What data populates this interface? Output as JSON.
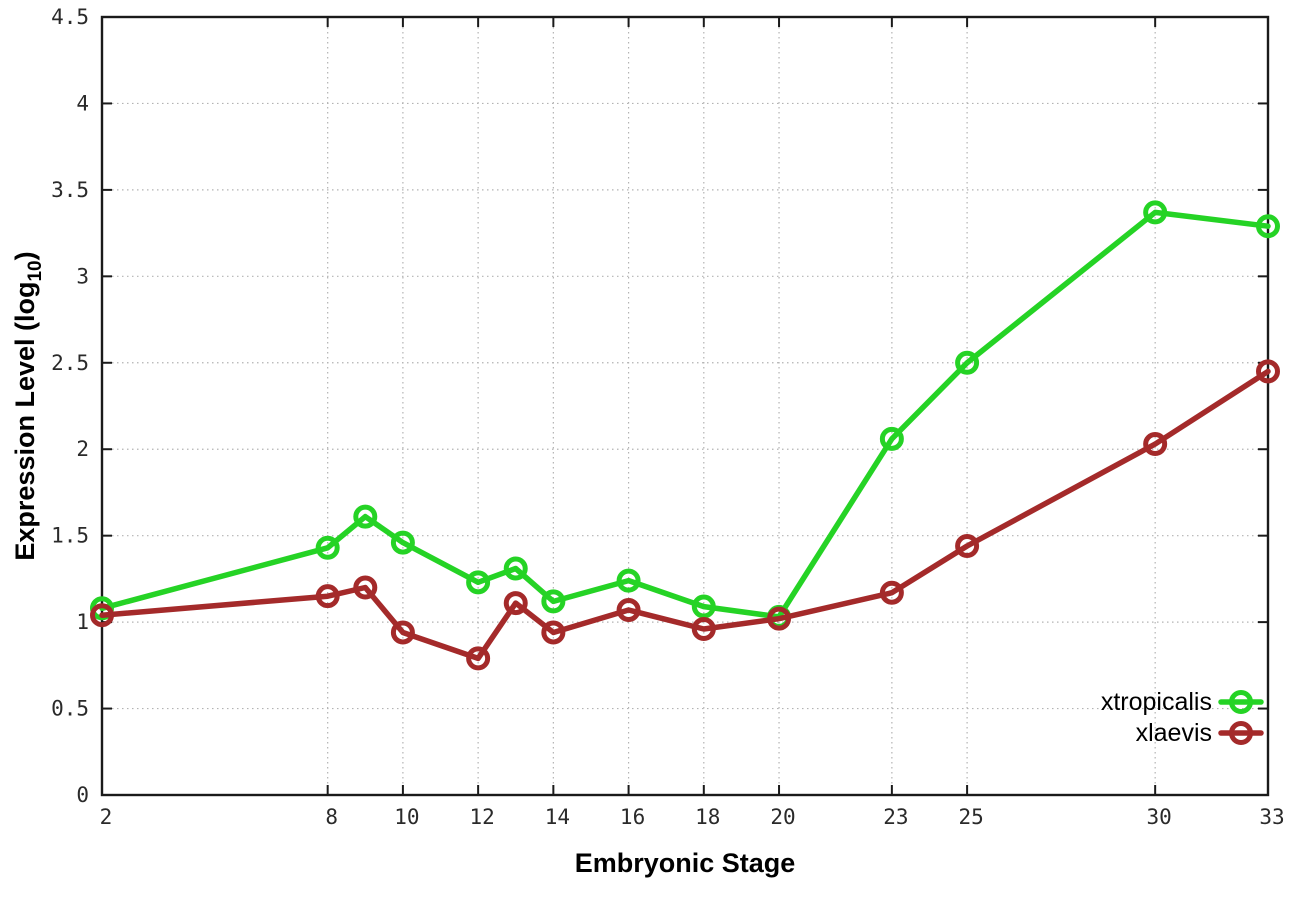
{
  "chart_data": {
    "type": "line",
    "title": "",
    "xlabel": "Embryonic Stage",
    "ylabel": {
      "pre": "Expression Level (log",
      "sub": "10",
      "post": ")"
    },
    "x": [
      2,
      8,
      9,
      10,
      12,
      13,
      14,
      16,
      18,
      20,
      23,
      25,
      30,
      33
    ],
    "xlim": [
      2,
      33
    ],
    "ylim": [
      0,
      4.5
    ],
    "xticks": [
      2,
      8,
      10,
      12,
      14,
      16,
      18,
      20,
      23,
      25,
      30,
      33
    ],
    "xticklabels": [
      "2",
      "8",
      "10",
      "12",
      "14",
      "16",
      "18",
      "20",
      "23",
      "25",
      "30",
      "33"
    ],
    "yticks": [
      0,
      0.5,
      1,
      1.5,
      2,
      2.5,
      3,
      3.5,
      4,
      4.5
    ],
    "yticklabels": [
      "0",
      "0.5",
      "1",
      "1.5",
      "2",
      "2.5",
      "3",
      "3.5",
      "4",
      "4.5"
    ],
    "grid": "dotted",
    "legend_position": "bottom-right",
    "series": [
      {
        "name": "xtropicalis",
        "color": "#25d325",
        "values": [
          1.08,
          1.43,
          1.61,
          1.46,
          1.23,
          1.31,
          1.12,
          1.24,
          1.09,
          1.03,
          2.06,
          2.5,
          3.37,
          3.29
        ]
      },
      {
        "name": "xlaevis",
        "color": "#a42a2a",
        "values": [
          1.04,
          1.15,
          1.2,
          0.94,
          0.79,
          1.11,
          0.94,
          1.07,
          0.96,
          1.02,
          1.17,
          1.44,
          2.03,
          2.45
        ]
      }
    ]
  },
  "colors": {
    "background": "#ffffff",
    "grid": "#b3b3b3",
    "axis": "#1a1a1a",
    "xtropicalis": "#25d325",
    "xlaevis": "#a42a2a"
  }
}
